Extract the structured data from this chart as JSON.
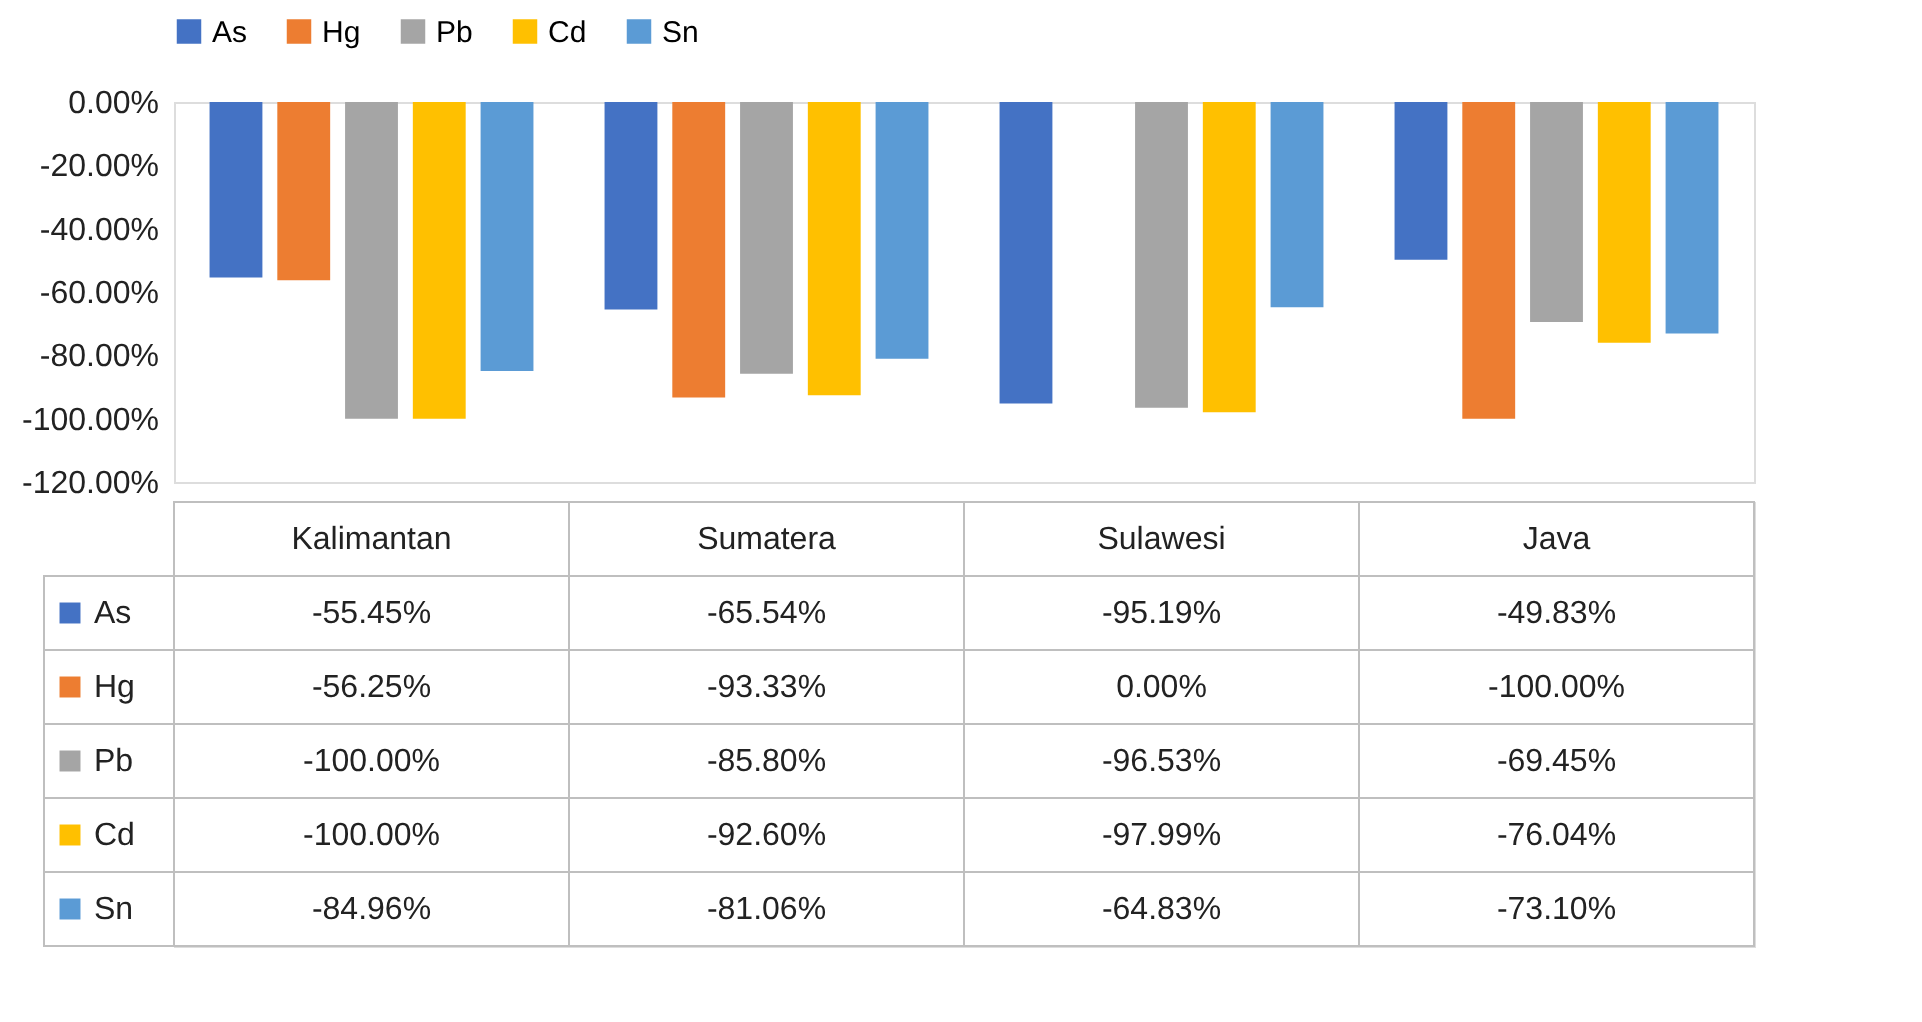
{
  "chart_data": {
    "type": "bar",
    "categories": [
      "Kalimantan",
      "Sumatera",
      "Sulawesi",
      "Java"
    ],
    "series": [
      {
        "name": "As",
        "color": "#4472c4",
        "values": [
          -55.45,
          -65.54,
          -95.19,
          -49.83
        ],
        "value_labels": [
          "-55.45%",
          "-65.54%",
          "-95.19%",
          "-49.83%"
        ]
      },
      {
        "name": "Hg",
        "color": "#ed7d31",
        "values": [
          -56.25,
          -93.33,
          0.0,
          -100.0
        ],
        "value_labels": [
          "-56.25%",
          "-93.33%",
          "0.00%",
          "-100.00%"
        ]
      },
      {
        "name": "Pb",
        "color": "#a5a5a5",
        "values": [
          -100.0,
          -85.8,
          -96.53,
          -69.45
        ],
        "value_labels": [
          "-100.00%",
          "-85.80%",
          "-96.53%",
          "-69.45%"
        ]
      },
      {
        "name": "Cd",
        "color": "#ffc000",
        "values": [
          -100.0,
          -92.6,
          -97.99,
          -76.04
        ],
        "value_labels": [
          "-100.00%",
          "-92.60%",
          "-97.99%",
          "-76.04%"
        ]
      },
      {
        "name": "Sn",
        "color": "#5b9bd5",
        "values": [
          -84.96,
          -81.06,
          -64.83,
          -73.1
        ],
        "value_labels": [
          "-84.96%",
          "-81.06%",
          "-64.83%",
          "-73.10%"
        ]
      }
    ],
    "ylim": [
      -120,
      0
    ],
    "yticks": [
      {
        "value": 0,
        "label": "0.00%"
      },
      {
        "value": -20,
        "label": "-20.00%"
      },
      {
        "value": -40,
        "label": "-40.00%"
      },
      {
        "value": -60,
        "label": "-60.00%"
      },
      {
        "value": -80,
        "label": "-80.00%"
      },
      {
        "value": -100,
        "label": "-100.00%"
      },
      {
        "value": -120,
        "label": "-120.00%"
      }
    ],
    "grid": false,
    "legend": "top"
  }
}
